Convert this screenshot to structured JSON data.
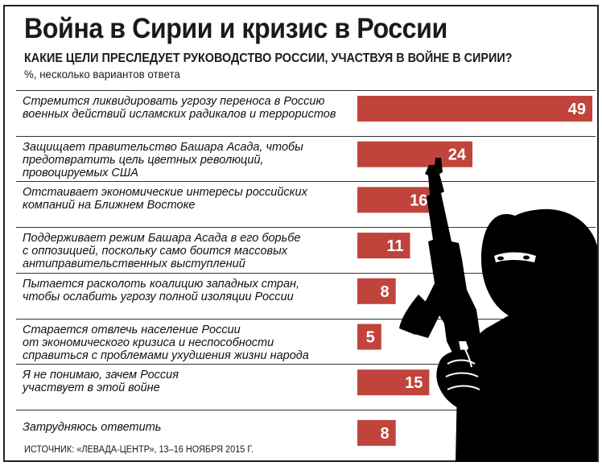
{
  "title": "Война в Сирии и кризис в России",
  "subtitle": "КАКИЕ ЦЕЛИ ПРЕСЛЕДУЕТ РУКОВОДСТВО РОССИИ, УЧАСТВУЯ В ВОЙНЕ В СИРИИ?",
  "note": "%, несколько вариантов ответа",
  "source": "ИСТОЧНИК: «ЛЕВАДА-ЦЕНТР», 13–16 НОЯБРЯ 2015 Г.",
  "colors": {
    "bar": "#c0443c",
    "bar_edge": "#8e2a23",
    "text": "#1a1a1a",
    "silhouette": "#000000"
  },
  "illustration": "masked-gunman-silhouette-with-rifle",
  "chart_data": {
    "type": "bar",
    "orientation": "horizontal",
    "title": "КАКИЕ ЦЕЛИ ПРЕСЛЕДУЕТ РУКОВОДСТВО РОССИИ, УЧАСТВУЯ В ВОЙНЕ В СИРИИ?",
    "unit": "%",
    "categories": [
      [
        "Стремится ликвидировать угрозу переноса в Россию",
        "военных действий исламских радикалов и террористов"
      ],
      [
        "Защищает  правительство Башара Асада, чтобы",
        "предотвратить цель цветных революций,",
        "провоцируемых США"
      ],
      [
        "Отстаивает экономические интересы российских",
        "компаний на Ближнем Востоке"
      ],
      [
        "Поддерживает режим Башара Асада в его борьбе",
        "с оппозицией, поскольку само боится массовых",
        "антиправительственных выступлений"
      ],
      [
        "Пытается расколоть коалицию западных стран,",
        "чтобы ослабить угрозу полной изоляции России"
      ],
      [
        "Старается отвлечь население России",
        "от экономического кризиса и неспособности",
        "справиться с проблемами ухудшения жизни народа"
      ],
      [
        "Я не понимаю, зачем Россия",
        "участвует в этой войне"
      ],
      [
        "Затрудняюсь ответить"
      ]
    ],
    "values": [
      49,
      24,
      16,
      11,
      8,
      5,
      15,
      8
    ],
    "value_labels": [
      "49",
      "24",
      "16",
      "11",
      "8",
      "5",
      "15",
      "8"
    ],
    "grid": false,
    "legend": "none"
  }
}
